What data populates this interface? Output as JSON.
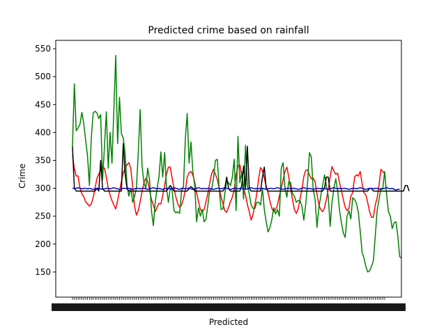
{
  "chart_data": {
    "type": "line",
    "title": "Predicted crime based on rainfall",
    "xlabel": "Predicted",
    "ylabel": "Crime",
    "ylim": [
      105,
      565
    ],
    "yticks": [
      150,
      200,
      250,
      300,
      350,
      400,
      450,
      500,
      550
    ],
    "x_tick_labels_legible": false,
    "grid": false,
    "legend": "none",
    "series": [
      {
        "color": "#ff0000",
        "values": [
          360,
          335,
          322,
          322,
          300,
          290,
          285,
          276,
          272,
          268,
          272,
          283,
          300,
          318,
          325,
          333,
          338,
          336,
          320,
          300,
          288,
          278,
          270,
          263,
          278,
          295,
          312,
          328,
          335,
          342,
          346,
          335,
          304,
          268,
          252,
          260,
          276,
          294,
          310,
          318,
          313,
          296,
          280,
          270,
          258,
          266,
          273,
          272,
          287,
          305,
          325,
          338,
          338,
          318,
          300,
          284,
          272,
          266,
          270,
          281,
          296,
          320,
          328,
          330,
          324,
          311,
          292,
          276,
          262,
          258,
          262,
          276,
          291,
          310,
          326,
          334,
          325,
          316,
          300,
          285,
          272,
          260,
          257,
          266,
          276,
          284,
          298,
          324,
          340,
          342,
          323,
          300,
          288,
          271,
          258,
          243,
          253,
          271,
          290,
          318,
          337,
          332,
          318,
          304,
          292,
          277,
          264,
          258,
          262,
          270,
          286,
          300,
          316,
          330,
          338,
          320,
          299,
          280,
          262,
          255,
          263,
          281,
          298,
          321,
          332,
          333,
          324,
          317,
          318,
          312,
          290,
          270,
          262,
          258,
          265,
          280,
          297,
          320,
          339,
          331,
          325,
          327,
          310,
          296,
          280,
          266,
          260,
          264,
          286,
          292,
          320,
          324,
          322,
          330,
          308,
          292,
          288,
          274,
          258,
          248,
          248,
          270,
          283,
          306,
          334,
          330,
          326
        ]
      },
      {
        "color": "#008000",
        "values": [
          375,
          487,
          403,
          408,
          415,
          436,
          416,
          386,
          358,
          305,
          390,
          435,
          438,
          435,
          425,
          432,
          315,
          375,
          437,
          336,
          400,
          345,
          440,
          538,
          380,
          463,
          398,
          390,
          362,
          305,
          286,
          300,
          275,
          285,
          300,
          365,
          441,
          340,
          310,
          300,
          336,
          315,
          260,
          233,
          275,
          300,
          320,
          365,
          320,
          364,
          300,
          275,
          300,
          296,
          260,
          256,
          258,
          255,
          295,
          303,
          388,
          434,
          345,
          383,
          330,
          305,
          240,
          265,
          250,
          262,
          240,
          245,
          270,
          297,
          298,
          318,
          350,
          352,
          300,
          262,
          263,
          290,
          313,
          310,
          305,
          320,
          352,
          260,
          393,
          310,
          330,
          281,
          377,
          305,
          290,
          270,
          264,
          264,
          275,
          275,
          270,
          300,
          262,
          240,
          222,
          230,
          244,
          265,
          254,
          262,
          250,
          336,
          346,
          300,
          284,
          312,
          310,
          290,
          286,
          275,
          278,
          278,
          268,
          243,
          270,
          310,
          364,
          356,
          298,
          280,
          230,
          265,
          286,
          305,
          324,
          304,
          286,
          232,
          275,
          300,
          317,
          296,
          260,
          238,
          220,
          212,
          250,
          260,
          245,
          283,
          280,
          273,
          257,
          223,
          185,
          175,
          160,
          150,
          152,
          160,
          170,
          215,
          260,
          280,
          300,
          300,
          330,
          290,
          258,
          250,
          228,
          238,
          240,
          214,
          177,
          175
        ]
      },
      {
        "color": "#000000",
        "values": [
          375,
          300,
          295,
          295,
          295,
          295,
          295,
          295,
          295,
          295,
          295,
          295,
          295,
          300,
          295,
          350,
          300,
          295,
          295,
          295,
          295,
          295,
          295,
          295,
          295,
          295,
          295,
          380,
          325,
          300,
          295,
          295,
          295,
          295,
          295,
          295,
          295,
          295,
          295,
          295,
          295,
          295,
          295,
          295,
          295,
          295,
          295,
          295,
          295,
          295,
          295,
          300,
          305,
          300,
          295,
          295,
          295,
          295,
          295,
          295,
          295,
          295,
          300,
          303,
          300,
          295,
          295,
          295,
          295,
          295,
          295,
          295,
          295,
          295,
          295,
          295,
          295,
          295,
          295,
          295,
          295,
          300,
          320,
          300,
          295,
          295,
          295,
          295,
          295,
          295,
          305,
          340,
          300,
          375,
          300,
          295,
          295,
          295,
          295,
          295,
          295,
          320,
          338,
          300,
          295,
          295,
          295,
          295,
          295,
          295,
          295,
          295,
          295,
          295,
          295,
          295,
          295,
          295,
          295,
          295,
          295,
          295,
          295,
          295,
          295,
          295,
          295,
          295,
          295,
          295,
          295,
          295,
          295,
          295,
          300,
          320,
          320,
          295,
          295,
          295,
          295,
          295,
          295,
          295,
          295,
          295,
          295,
          295,
          295,
          295,
          295,
          295,
          295,
          295,
          295,
          295,
          295,
          295,
          300,
          300,
          295,
          295,
          295,
          295,
          295,
          295,
          295,
          295,
          295,
          295,
          295,
          295,
          295,
          295,
          295,
          295,
          295,
          305,
          305,
          295
        ]
      },
      {
        "color": "#0000cc",
        "values": [
          300,
          300,
          300,
          301,
          300,
          299,
          300,
          300,
          299,
          300,
          299,
          298,
          299,
          300,
          300,
          299,
          298,
          299,
          300,
          300,
          299,
          300,
          301,
          300,
          299,
          298,
          299,
          300,
          300,
          299,
          300,
          299,
          298,
          299,
          300,
          300,
          299,
          300,
          300,
          299,
          298,
          299,
          300,
          301,
          300,
          299,
          300,
          299,
          298,
          299,
          300,
          300,
          299,
          300,
          301,
          300,
          299,
          298,
          300,
          300,
          299,
          300,
          300,
          299,
          298,
          299,
          300,
          301,
          300,
          299,
          300,
          299,
          300,
          300,
          299,
          298,
          299,
          300,
          300,
          299,
          300,
          301,
          300,
          299,
          298,
          299,
          300,
          300,
          299,
          300,
          300,
          299,
          298,
          299,
          300,
          301,
          300,
          299,
          300,
          299,
          300,
          300,
          299,
          298,
          299,
          300,
          300,
          299,
          300,
          301,
          300,
          299,
          298,
          299,
          300,
          300,
          299,
          300,
          300,
          299,
          298,
          299,
          300,
          301,
          300,
          299,
          300,
          299,
          298,
          299,
          300,
          300,
          299,
          300,
          300,
          299,
          298,
          299,
          300,
          301,
          300,
          299,
          300,
          299,
          300,
          300,
          299,
          298,
          299,
          300,
          300,
          299,
          300,
          301,
          300,
          299,
          298,
          299,
          300,
          300,
          299,
          300,
          300,
          299,
          298,
          299,
          300,
          301,
          300,
          299,
          300,
          298,
          297,
          298,
          298
        ]
      }
    ]
  }
}
